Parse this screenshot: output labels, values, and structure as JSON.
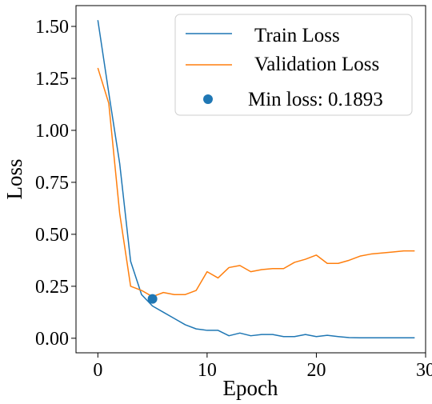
{
  "chart_data": {
    "type": "line",
    "title": "",
    "xlabel": "Epoch",
    "ylabel": "Loss",
    "xlim": [
      -2,
      30
    ],
    "ylim": [
      -0.07,
      1.6
    ],
    "x_ticks": [
      0,
      10,
      20,
      30
    ],
    "y_ticks": [
      0.0,
      0.25,
      0.5,
      0.75,
      1.0,
      1.25,
      1.5
    ],
    "x_tick_labels": [
      "0",
      "10",
      "20",
      "30"
    ],
    "y_tick_labels": [
      "0.00",
      "0.25",
      "0.50",
      "0.75",
      "1.00",
      "1.25",
      "1.50"
    ],
    "grid": false,
    "legend_position": "top-right",
    "x": [
      0,
      1,
      2,
      3,
      4,
      5,
      6,
      7,
      8,
      9,
      10,
      11,
      12,
      13,
      14,
      15,
      16,
      17,
      18,
      19,
      20,
      21,
      22,
      23,
      24,
      25,
      26,
      27,
      28,
      29
    ],
    "series": [
      {
        "name": "Train Loss",
        "color": "#1f77b4",
        "values": [
          1.53,
          1.18,
          0.84,
          0.37,
          0.21,
          0.155,
          0.125,
          0.095,
          0.065,
          0.045,
          0.038,
          0.038,
          0.012,
          0.025,
          0.012,
          0.018,
          0.018,
          0.008,
          0.008,
          0.018,
          0.008,
          0.014,
          0.008,
          0.003,
          0.002,
          0.002,
          0.002,
          0.002,
          0.002,
          0.002
        ]
      },
      {
        "name": "Validation Loss",
        "color": "#ff7f0e",
        "values": [
          1.3,
          1.13,
          0.6,
          0.25,
          0.23,
          0.2,
          0.22,
          0.21,
          0.21,
          0.23,
          0.32,
          0.29,
          0.34,
          0.35,
          0.32,
          0.33,
          0.335,
          0.335,
          0.365,
          0.38,
          0.4,
          0.36,
          0.36,
          0.375,
          0.395,
          0.405,
          0.41,
          0.415,
          0.42,
          0.42
        ]
      }
    ],
    "annotations": [
      {
        "type": "point",
        "label": "Min loss: 0.1893",
        "x": 5,
        "y": 0.1893,
        "color": "#1f77b4"
      }
    ]
  }
}
